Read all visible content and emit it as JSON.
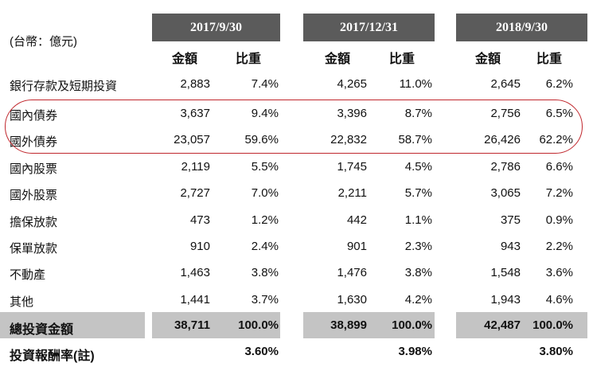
{
  "unit_label": "(台幣：億元)",
  "periods": [
    {
      "label": "2017/9/30",
      "amount_header": "金額",
      "ratio_header": "比重"
    },
    {
      "label": "2017/12/31",
      "amount_header": "金額",
      "ratio_header": "比重"
    },
    {
      "label": "2018/9/30",
      "amount_header": "金額",
      "ratio_header": "比重"
    }
  ],
  "rows": [
    {
      "label": "銀行存款及短期投資",
      "values": [
        [
          "2,883",
          "7.4%"
        ],
        [
          "4,265",
          "11.0%"
        ],
        [
          "2,645",
          "6.2%"
        ]
      ]
    },
    {
      "label": "國內債券",
      "values": [
        [
          "3,637",
          "9.4%"
        ],
        [
          "3,396",
          "8.7%"
        ],
        [
          "2,756",
          "6.5%"
        ]
      ]
    },
    {
      "label": "國外債券",
      "values": [
        [
          "23,057",
          "59.6%"
        ],
        [
          "22,832",
          "58.7%"
        ],
        [
          "26,426",
          "62.2%"
        ]
      ]
    },
    {
      "label": "國內股票",
      "values": [
        [
          "2,119",
          "5.5%"
        ],
        [
          "1,745",
          "4.5%"
        ],
        [
          "2,786",
          "6.6%"
        ]
      ]
    },
    {
      "label": "國外股票",
      "values": [
        [
          "2,727",
          "7.0%"
        ],
        [
          "2,211",
          "5.7%"
        ],
        [
          "3,065",
          "7.2%"
        ]
      ]
    },
    {
      "label": "擔保放款",
      "values": [
        [
          "473",
          "1.2%"
        ],
        [
          "442",
          "1.1%"
        ],
        [
          "375",
          "0.9%"
        ]
      ]
    },
    {
      "label": "保單放款",
      "values": [
        [
          "910",
          "2.4%"
        ],
        [
          "901",
          "2.3%"
        ],
        [
          "943",
          "2.2%"
        ]
      ]
    },
    {
      "label": "不動產",
      "values": [
        [
          "1,463",
          "3.8%"
        ],
        [
          "1,476",
          "3.8%"
        ],
        [
          "1,548",
          "3.6%"
        ]
      ]
    },
    {
      "label": "其他",
      "values": [
        [
          "1,441",
          "3.7%"
        ],
        [
          "1,630",
          "4.2%"
        ],
        [
          "1,943",
          "4.6%"
        ]
      ]
    }
  ],
  "total": {
    "label": "總投資金額",
    "values": [
      [
        "38,711",
        "100.0%"
      ],
      [
        "38,899",
        "100.0%"
      ],
      [
        "42,487",
        "100.0%"
      ]
    ]
  },
  "return_rate": {
    "label": "投資報酬率(註)",
    "values": [
      "3.60%",
      "3.98%",
      "3.80%"
    ]
  },
  "colors": {
    "header_bg": "#5b5b5b",
    "total_bg": "#c4c4c4",
    "highlight": "#c0272d"
  }
}
